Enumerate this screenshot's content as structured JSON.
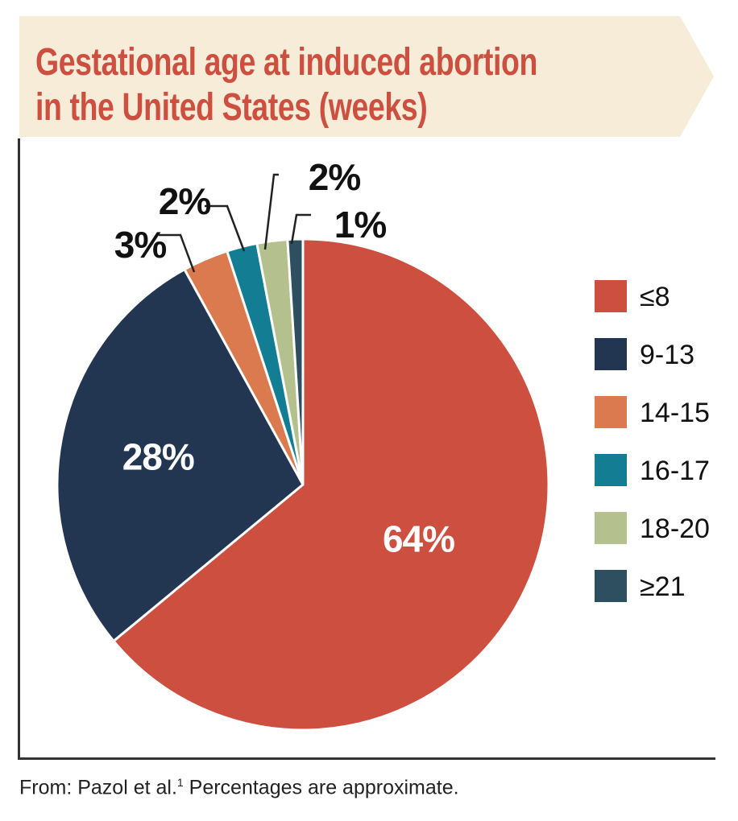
{
  "title": "Gestational age at induced abortion in the United States (weeks)",
  "footnote": {
    "prefix": "From: Pazol et al.",
    "ref": "1",
    "suffix": " Percentages are approximate."
  },
  "colors": {
    "banner": "#f6ecd7",
    "title": "#cd4f40",
    "axis": "#333333",
    "label_dark": "#111111",
    "label_light": "#ffffff"
  },
  "chart_data": {
    "type": "pie",
    "title": "Gestational age at induced abortion in the United States (weeks)",
    "start_angle_deg": 0,
    "direction": "clockwise",
    "slices": [
      {
        "label": "≤8",
        "value": 64,
        "display": "64%",
        "color": "#cd4f40",
        "label_inside": true
      },
      {
        "label": "9-13",
        "value": 28,
        "display": "28%",
        "color": "#223651",
        "label_inside": true
      },
      {
        "label": "14-15",
        "value": 3,
        "display": "3%",
        "color": "#db7a4e",
        "label_inside": false
      },
      {
        "label": "16-17",
        "value": 2,
        "display": "2%",
        "color": "#137d93",
        "label_inside": false
      },
      {
        "label": "18-20",
        "value": 2,
        "display": "2%",
        "color": "#b4c18e",
        "label_inside": false
      },
      {
        "label": "≥21",
        "value": 1,
        "display": "1%",
        "color": "#2d4f5f",
        "label_inside": false
      }
    ],
    "legend": {
      "position": "right"
    }
  }
}
